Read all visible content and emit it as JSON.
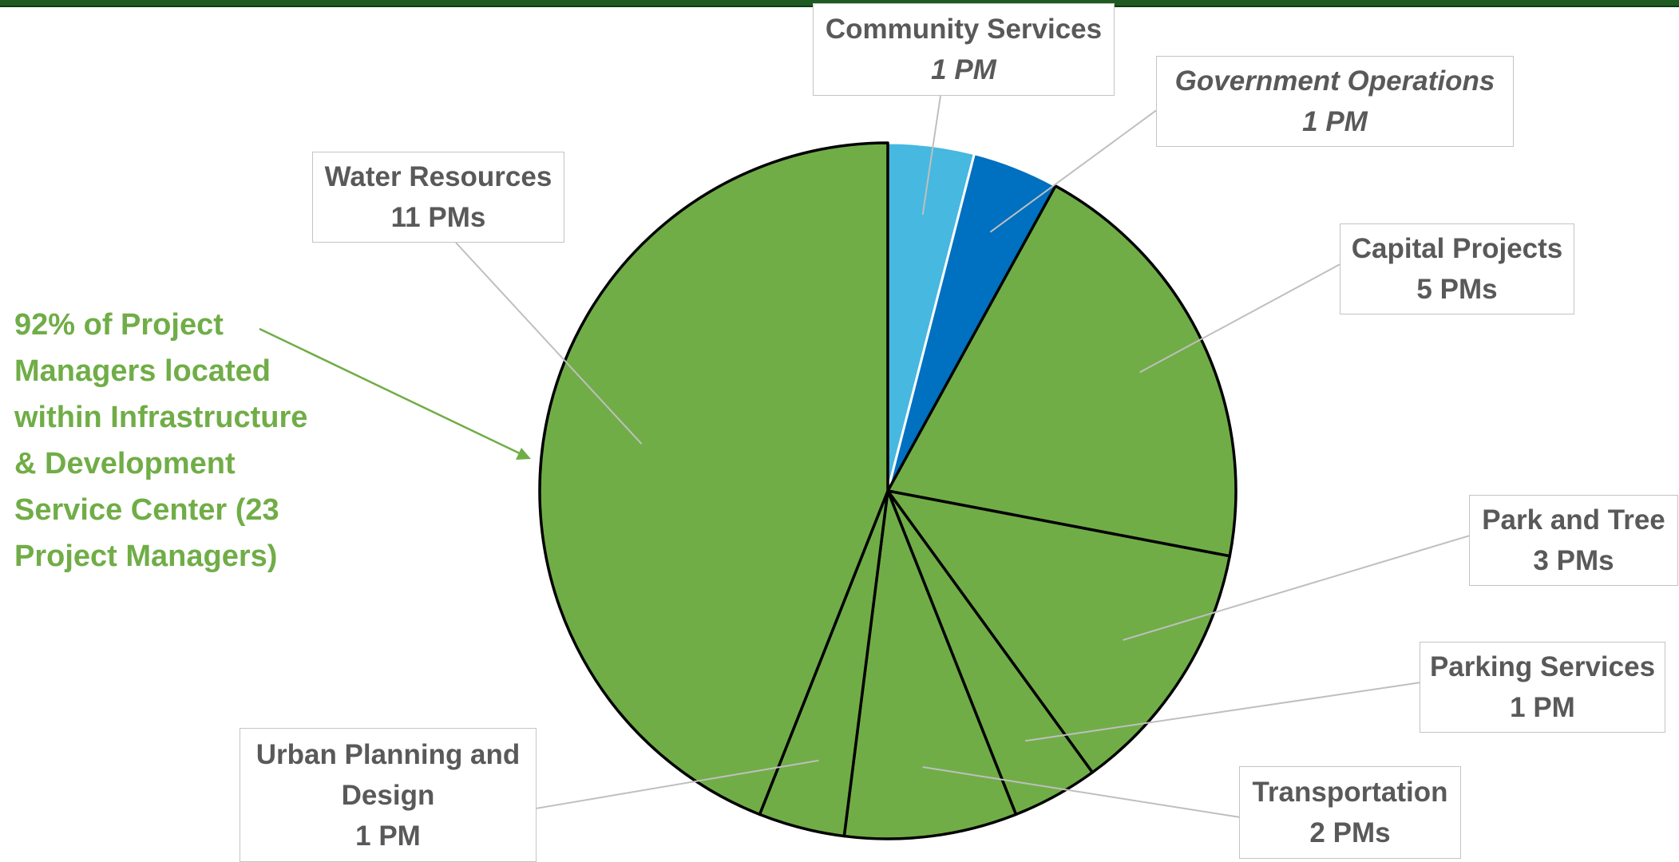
{
  "chart_data": {
    "type": "pie",
    "title": "",
    "colors": {
      "infrastructure": "#70ad47",
      "community": "#47b8e0",
      "government": "#0070c0",
      "outline": "#000000",
      "leader": "#bfbfbf",
      "callout": "#70ad47"
    },
    "slices": [
      {
        "name": "Community Services",
        "value": 1,
        "value_label": "1 PM",
        "color": "#47b8e0",
        "italic_name": false,
        "italic_value": true
      },
      {
        "name": "Government Operations",
        "value": 1,
        "value_label": "1 PM",
        "color": "#0070c0",
        "italic_name": true,
        "italic_value": true
      },
      {
        "name": "Capital Projects",
        "value": 5,
        "value_label": "5 PMs",
        "color": "#70ad47",
        "italic_name": false,
        "italic_value": false
      },
      {
        "name": "Park and Tree",
        "value": 3,
        "value_label": "3 PMs",
        "color": "#70ad47",
        "italic_name": false,
        "italic_value": false
      },
      {
        "name": "Parking Services",
        "value": 1,
        "value_label": "1 PM",
        "color": "#70ad47",
        "italic_name": false,
        "italic_value": false
      },
      {
        "name": "Transportation",
        "value": 2,
        "value_label": "2 PMs",
        "color": "#70ad47",
        "italic_name": false,
        "italic_value": false
      },
      {
        "name": "Urban Planning and Design",
        "value": 1,
        "value_label": "1 PM",
        "color": "#70ad47",
        "italic_name": false,
        "italic_value": false
      },
      {
        "name": "Water Resources",
        "value": 11,
        "value_label": "11 PMs",
        "color": "#70ad47",
        "italic_name": false,
        "italic_value": false
      }
    ],
    "annotation": "92% of Project Managers located within Infrastructure & Development Service Center (23 Project Managers)"
  }
}
